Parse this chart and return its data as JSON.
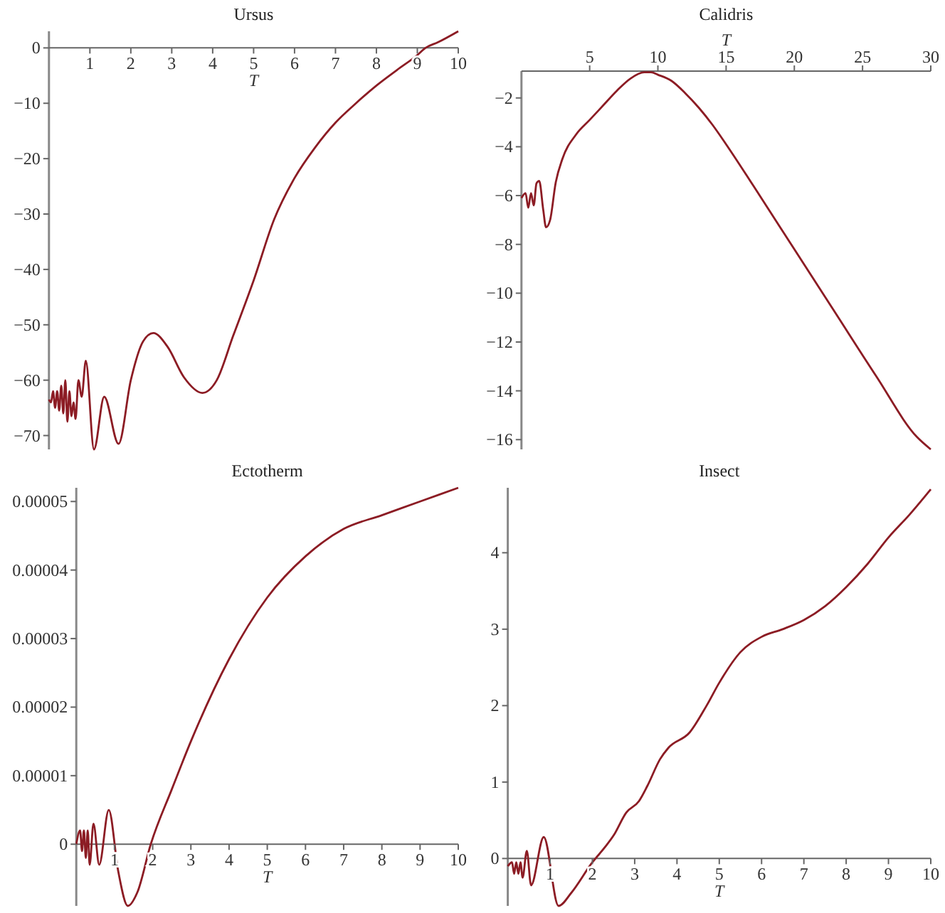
{
  "chart_data": [
    {
      "type": "line",
      "title": "Ursus",
      "xlabel": "T",
      "xlim": [
        0,
        10
      ],
      "ylim": [
        -72.5,
        3
      ],
      "xticks": [
        1,
        2,
        3,
        4,
        5,
        6,
        7,
        8,
        9,
        10
      ],
      "yticks": [
        -70,
        -60,
        -50,
        -40,
        -30,
        -20,
        -10,
        0
      ],
      "x": [
        0,
        0.05,
        0.1,
        0.15,
        0.2,
        0.25,
        0.3,
        0.35,
        0.4,
        0.45,
        0.5,
        0.55,
        0.6,
        0.65,
        0.72,
        0.8,
        0.9,
        1.1,
        1.35,
        1.7,
        2.0,
        2.3,
        2.55,
        2.9,
        3.3,
        3.75,
        4.1,
        4.5,
        5,
        5.5,
        6,
        6.5,
        7,
        7.5,
        8,
        8.5,
        9,
        9.2,
        9.5,
        10
      ],
      "series": [
        {
          "color": "#8c1c24",
          "values": [
            -63.5,
            -64,
            -62,
            -65,
            -62,
            -65.5,
            -61,
            -66,
            -60,
            -67.5,
            -62,
            -66.5,
            -64,
            -67,
            -60,
            -63,
            -56.5,
            -72.5,
            -63,
            -71.5,
            -60,
            -53,
            -51.5,
            -54,
            -59.5,
            -62.3,
            -60,
            -52,
            -42,
            -31,
            -23.5,
            -18,
            -13.5,
            -10,
            -6.8,
            -4,
            -1.3,
            0,
            1,
            3
          ]
        }
      ]
    },
    {
      "type": "line",
      "title": "Calidris",
      "xlabel": "T",
      "xlim": [
        0,
        30
      ],
      "ylim": [
        -16.4,
        -0.9
      ],
      "xticks": [
        5,
        10,
        15,
        20,
        25,
        30
      ],
      "yticks": [
        -16,
        -14,
        -12,
        -10,
        -8,
        -6,
        -4,
        -2
      ],
      "x": [
        0,
        0.3,
        0.5,
        0.7,
        0.9,
        1.1,
        1.3,
        1.6,
        1.8,
        2.1,
        2.5,
        3,
        4,
        5,
        6,
        7,
        8,
        9,
        9.5,
        10,
        11,
        12,
        13,
        14,
        15,
        17,
        20,
        23,
        26,
        29,
        30
      ],
      "series": [
        {
          "color": "#8c1c24",
          "values": [
            -6.1,
            -5.9,
            -6.5,
            -5.9,
            -6.4,
            -5.5,
            -5.4,
            -6.6,
            -7.3,
            -7,
            -5.5,
            -4.5,
            -3.5,
            -2.9,
            -2.3,
            -1.7,
            -1.2,
            -0.95,
            -0.95,
            -1.05,
            -1.3,
            -1.8,
            -2.4,
            -3.1,
            -3.9,
            -5.6,
            -8.2,
            -10.8,
            -13.4,
            -15.9,
            -16.4
          ]
        }
      ]
    },
    {
      "type": "line",
      "title": "Ectotherm",
      "xlabel": "T",
      "xlim": [
        0,
        10
      ],
      "ylim": [
        -9e-06,
        5.2e-05
      ],
      "xticks": [
        1,
        2,
        3,
        4,
        5,
        6,
        7,
        8,
        9,
        10
      ],
      "yticks": [
        0,
        {
          "value": 1e-05,
          "label": "0.00001"
        },
        {
          "value": 2e-05,
          "label": "0.00002"
        },
        {
          "value": 3e-05,
          "label": "0.00003"
        },
        {
          "value": 4e-05,
          "label": "0.00004"
        },
        {
          "value": 5e-05,
          "label": "0.00005"
        }
      ],
      "x": [
        0,
        0.1,
        0.15,
        0.2,
        0.25,
        0.3,
        0.35,
        0.45,
        0.6,
        0.85,
        1.1,
        1.35,
        1.6,
        1.95,
        2.5,
        3,
        4,
        5,
        6,
        7,
        8,
        9,
        10
      ],
      "series": [
        {
          "color": "#8c1c24",
          "values": [
            0,
            2e-06,
            -1e-06,
            2e-06,
            -2e-06,
            2e-06,
            -3e-06,
            3e-06,
            -3e-06,
            5e-06,
            -4e-06,
            -9e-06,
            -7e-06,
            0,
            8e-06,
            1.5e-05,
            2.7e-05,
            3.6e-05,
            4.2e-05,
            4.6e-05,
            4.8e-05,
            5e-05,
            5.2e-05
          ]
        }
      ]
    },
    {
      "type": "line",
      "title": "Insect",
      "xlabel": "T",
      "xlim": [
        0,
        10
      ],
      "ylim": [
        -0.62,
        4.85
      ],
      "xticks": [
        1,
        2,
        3,
        4,
        5,
        6,
        7,
        8,
        9,
        10
      ],
      "yticks": [
        0,
        1,
        2,
        3,
        4
      ],
      "x": [
        0,
        0.1,
        0.15,
        0.2,
        0.25,
        0.3,
        0.35,
        0.45,
        0.55,
        0.85,
        1.2,
        1.5,
        2,
        2.3,
        2.5,
        2.8,
        3.1,
        3.3,
        3.6,
        3.8,
        4.3,
        4.7,
        5,
        5.5,
        6,
        6.5,
        7,
        7.5,
        8,
        8.5,
        9,
        9.5,
        10
      ],
      "series": [
        {
          "color": "#8c1c24",
          "values": [
            -0.1,
            -0.05,
            -0.2,
            -0.05,
            -0.2,
            -0.05,
            -0.25,
            0.1,
            -0.35,
            0.28,
            -0.62,
            -0.45,
            -0.05,
            0.15,
            0.3,
            0.6,
            0.75,
            0.95,
            1.3,
            1.45,
            1.65,
            2.0,
            2.3,
            2.7,
            2.9,
            3.0,
            3.12,
            3.3,
            3.55,
            3.85,
            4.2,
            4.5,
            4.83
          ]
        }
      ]
    }
  ]
}
